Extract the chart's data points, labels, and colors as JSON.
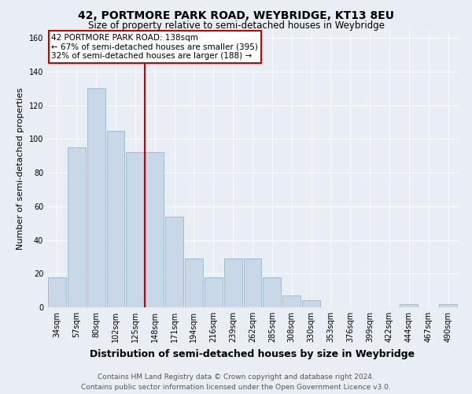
{
  "title": "42, PORTMORE PARK ROAD, WEYBRIDGE, KT13 8EU",
  "subtitle": "Size of property relative to semi-detached houses in Weybridge",
  "xlabel": "Distribution of semi-detached houses by size in Weybridge",
  "ylabel": "Number of semi-detached properties",
  "footer": "Contains HM Land Registry data © Crown copyright and database right 2024.\nContains public sector information licensed under the Open Government Licence v3.0.",
  "categories": [
    "34sqm",
    "57sqm",
    "80sqm",
    "102sqm",
    "125sqm",
    "148sqm",
    "171sqm",
    "194sqm",
    "216sqm",
    "239sqm",
    "262sqm",
    "285sqm",
    "308sqm",
    "330sqm",
    "353sqm",
    "376sqm",
    "399sqm",
    "422sqm",
    "444sqm",
    "467sqm",
    "490sqm"
  ],
  "values": [
    18,
    95,
    130,
    105,
    92,
    92,
    54,
    29,
    18,
    29,
    29,
    18,
    7,
    4,
    0,
    0,
    0,
    0,
    2,
    0,
    2
  ],
  "bar_color": "#c8d8e8",
  "bar_edge_color": "#9ab8cc",
  "highlight_index": 5,
  "highlight_color": "#cc0000",
  "annotation_text": "42 PORTMORE PARK ROAD: 138sqm\n← 67% of semi-detached houses are smaller (395)\n32% of semi-detached houses are larger (188) →",
  "annotation_box_color": "#ffffff",
  "annotation_box_edge": "#cc0000",
  "ylim": [
    0,
    165
  ],
  "yticks": [
    0,
    20,
    40,
    60,
    80,
    100,
    120,
    140,
    160
  ],
  "bg_color": "#e8eef4",
  "grid_color": "#ffffff",
  "title_fontsize": 10,
  "subtitle_fontsize": 8.5,
  "xlabel_fontsize": 9,
  "ylabel_fontsize": 8,
  "tick_fontsize": 7,
  "footer_fontsize": 6.5,
  "annotation_fontsize": 7.5
}
